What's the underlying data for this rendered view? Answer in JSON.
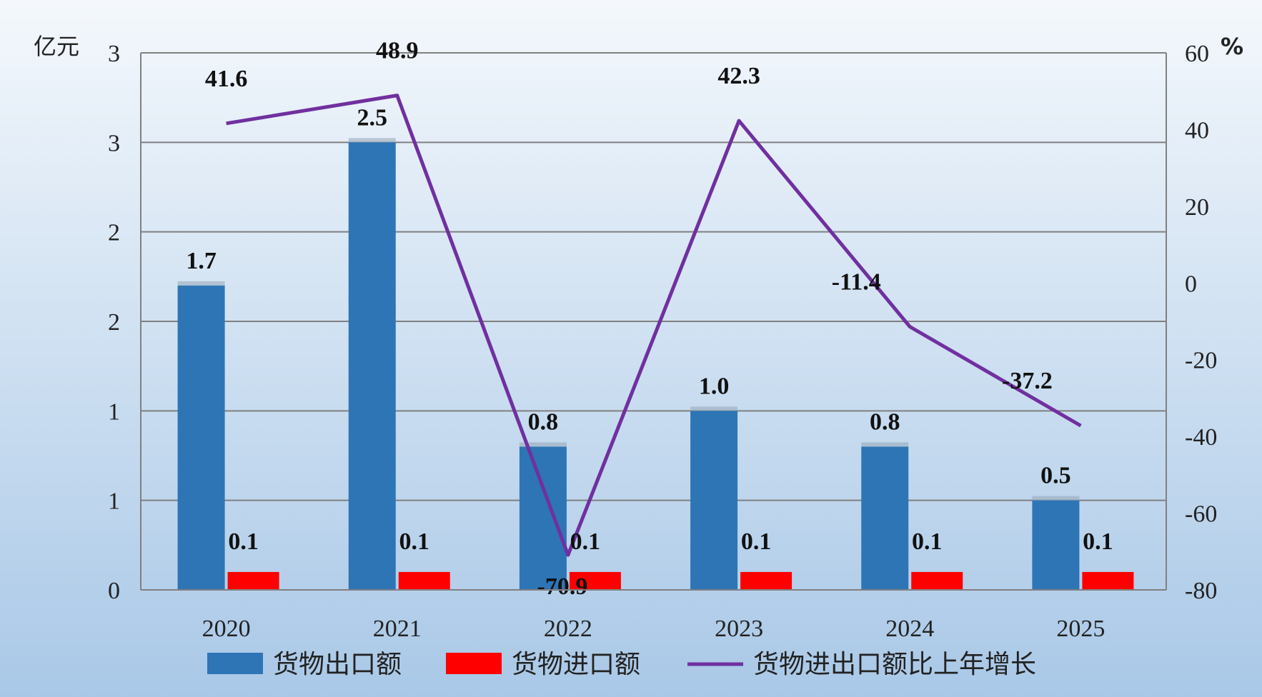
{
  "chart_data": {
    "type": "bar",
    "categories": [
      "2020",
      "2021",
      "2022",
      "2023",
      "2024",
      "2025"
    ],
    "series": [
      {
        "name": "货物出口额",
        "type": "bar",
        "axis": "left",
        "color": "#2E75B6",
        "values": [
          1.7,
          2.5,
          0.8,
          1.0,
          0.8,
          0.5
        ],
        "labels": [
          "1.7",
          "2.5",
          "0.8",
          "1.0",
          "0.8",
          "0.5"
        ]
      },
      {
        "name": "货物进口额",
        "type": "bar",
        "axis": "left",
        "color": "#FF0000",
        "values": [
          0.1,
          0.1,
          0.1,
          0.1,
          0.1,
          0.1
        ],
        "labels": [
          "0.1",
          "0.1",
          "0.1",
          "0.1",
          "0.1",
          "0.1"
        ]
      },
      {
        "name": "货物进出口额比上年增长",
        "type": "line",
        "axis": "right",
        "color": "#7030A0",
        "values": [
          41.6,
          48.9,
          -70.9,
          42.3,
          -11.4,
          -37.2
        ],
        "labels": [
          "41.6",
          "48.9",
          "-70.9",
          "42.3",
          "-11.4",
          "-37.2"
        ]
      }
    ],
    "y_left": {
      "unit": "亿元",
      "range": [
        0,
        3
      ],
      "ticks": [
        0,
        0.5,
        1,
        1.5,
        2,
        2.5,
        3
      ],
      "tick_labels": [
        "0",
        "1",
        "1",
        "2",
        "2",
        "3",
        "3"
      ]
    },
    "y_right": {
      "unit": "%",
      "range": [
        -80,
        60
      ],
      "ticks": [
        -80,
        -60,
        -40,
        -20,
        0,
        20,
        40,
        60
      ],
      "tick_labels": [
        "-80",
        "-60",
        "-40",
        "-20",
        "0",
        "20",
        "40",
        "60"
      ]
    },
    "grid": true,
    "legend_position": "bottom",
    "colors": {
      "background_top": "#F4F8FC",
      "background_bottom": "#A9C8E7",
      "grid": "#808080"
    }
  }
}
